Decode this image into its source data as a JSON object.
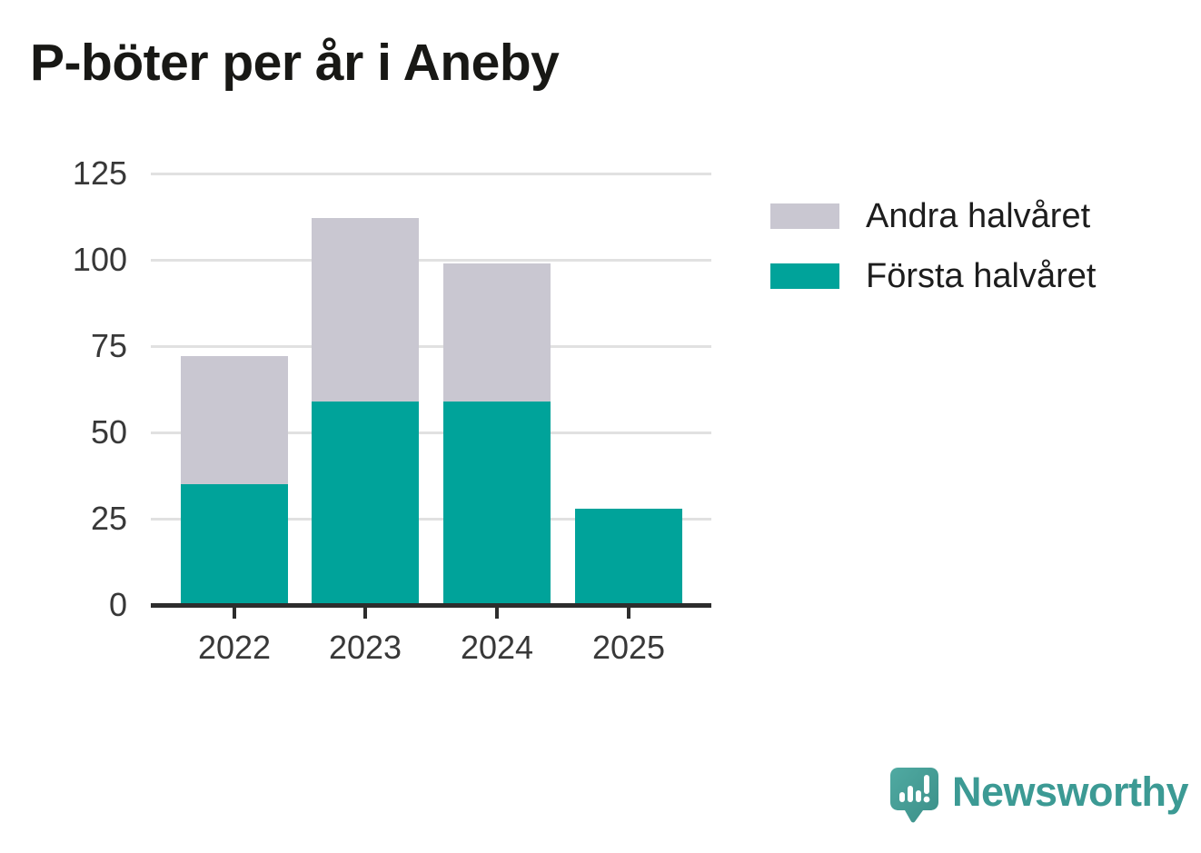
{
  "header": {
    "title": "P-böter per år i Aneby"
  },
  "chart_data": {
    "type": "bar",
    "stacked": true,
    "title": "P-böter per år i Aneby",
    "xlabel": "",
    "ylabel": "",
    "categories": [
      "2022",
      "2023",
      "2024",
      "2025"
    ],
    "series": [
      {
        "name": "Första halvåret",
        "color": "#00a39a",
        "values": [
          35,
          59,
          59,
          28
        ]
      },
      {
        "name": "Andra halvåret",
        "color": "#c9c7d1",
        "values": [
          37,
          53,
          40,
          0
        ]
      }
    ],
    "totals": [
      72,
      112,
      99,
      28
    ],
    "yticks": [
      0,
      25,
      50,
      75,
      100,
      125
    ],
    "ylim": [
      0,
      131
    ],
    "grid": "horizontal",
    "grid_color": "#e1e1e1",
    "axis_color": "#2d2d2d",
    "tick_label_color": "#383838",
    "legend_position": "right",
    "legend_order": [
      "Andra halvåret",
      "Första halvåret"
    ]
  },
  "legend": {
    "items": [
      {
        "label": "Andra halvåret",
        "color": "#c9c7d1"
      },
      {
        "label": "Första halvåret",
        "color": "#00a39a"
      }
    ]
  },
  "footer": {
    "brand": "Newsworthy",
    "brand_color": "#3c9a94",
    "logo_icon": "newsworthy-speech-bubble-chart-icon"
  }
}
